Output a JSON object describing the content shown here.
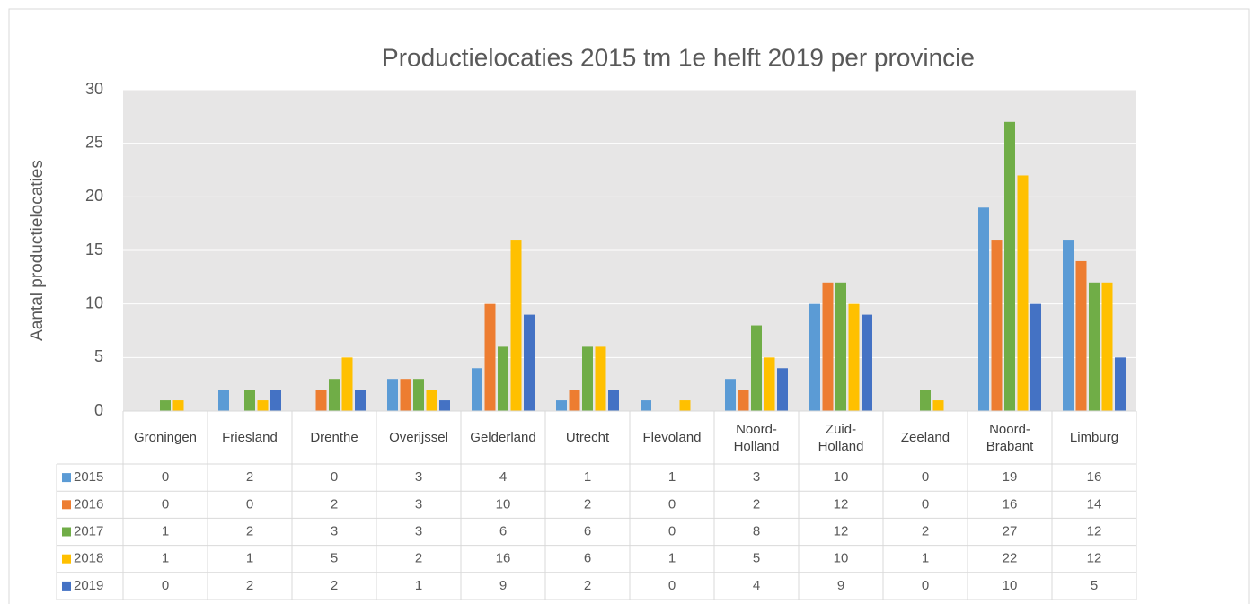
{
  "chart_data": {
    "type": "bar",
    "title": "Productielocaties 2015 tm 1e helft 2019 per provincie",
    "y_label": "Aantal productielocaties",
    "categories": [
      "Groningen",
      "Friesland",
      "Drenthe",
      "Overijssel",
      "Gelderland",
      "Utrecht",
      "Flevoland",
      "Noord-Holland",
      "Zuid-Holland",
      "Zeeland",
      "Noord-Brabant",
      "Limburg"
    ],
    "series": [
      {
        "name": "2015",
        "color": "#5b9bd5",
        "values": [
          0,
          2,
          0,
          3,
          4,
          1,
          1,
          3,
          10,
          0,
          19,
          16
        ]
      },
      {
        "name": "2016",
        "color": "#ed7d31",
        "values": [
          0,
          0,
          2,
          3,
          10,
          2,
          0,
          2,
          12,
          0,
          16,
          14
        ]
      },
      {
        "name": "2017",
        "color": "#70ad47",
        "values": [
          1,
          2,
          3,
          3,
          6,
          6,
          0,
          8,
          12,
          2,
          27,
          12
        ]
      },
      {
        "name": "2018",
        "color": "#ffc000",
        "values": [
          1,
          1,
          5,
          2,
          16,
          6,
          1,
          5,
          10,
          1,
          22,
          12
        ]
      },
      {
        "name": "2019",
        "color": "#4472c4",
        "values": [
          0,
          2,
          2,
          1,
          9,
          2,
          0,
          4,
          9,
          0,
          10,
          5
        ]
      }
    ],
    "ylim": [
      0,
      30
    ],
    "yticks": [
      0,
      5,
      10,
      15,
      20,
      25,
      30
    ],
    "grid": true
  }
}
